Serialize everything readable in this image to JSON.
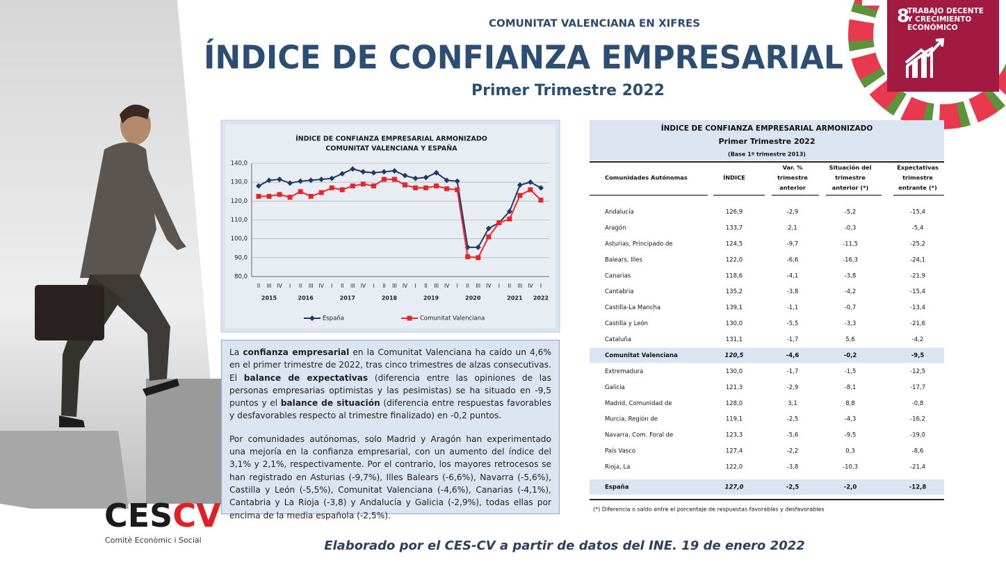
{
  "header": {
    "kicker": "COMUNITAT VALENCIANA EN XIFRES",
    "title": "ÍNDICE DE CONFIANZA EMPRESARIAL",
    "subtitle": "Primer Trimestre 2022"
  },
  "badge": {
    "number": "8",
    "lines": [
      "TRABAJO DECENTE",
      "Y CRECIMIENTO",
      "ECONÓMICO"
    ]
  },
  "chart_data": {
    "type": "line",
    "title": [
      "ÍNDICE DE CONFIANZA EMPRESARIAL ARMONIZADO",
      "COMUNITAT VALENCIANA Y ESPAÑA"
    ],
    "categories": [
      "II",
      "III",
      "IV",
      "I",
      "II",
      "III",
      "IV",
      "I",
      "II",
      "III",
      "IV",
      "I",
      "II",
      "III",
      "IV",
      "I",
      "II",
      "III",
      "IV",
      "I",
      "II",
      "III",
      "IV",
      "I",
      "II",
      "III",
      "IV",
      "I"
    ],
    "years": [
      "2015",
      "2016",
      "2017",
      "2018",
      "2019",
      "2020",
      "2021",
      "2022"
    ],
    "ylim": [
      80,
      140
    ],
    "yticks": [
      {
        "value": 80,
        "label": "80,0"
      },
      {
        "value": 90,
        "label": "90,0"
      },
      {
        "value": 100,
        "label": "100,0"
      },
      {
        "value": 110,
        "label": "110,0"
      },
      {
        "value": 120,
        "label": "120,0"
      },
      {
        "value": 130,
        "label": "130,0"
      },
      {
        "value": 140,
        "label": "140,0"
      }
    ],
    "series": [
      {
        "name": "España",
        "color": "#1f3864",
        "marker": "diamond",
        "values": [
          128,
          131,
          131.5,
          129.5,
          130.5,
          131,
          131.5,
          132,
          134.5,
          137,
          135.5,
          135,
          135.5,
          136,
          133.5,
          132,
          132.5,
          135,
          131,
          130.5,
          95.5,
          95.5,
          105.5,
          108.5,
          114.5,
          128.5,
          130,
          127
        ]
      },
      {
        "name": "Comunitat Valenciana",
        "color": "#e8232a",
        "marker": "square",
        "values": [
          122.5,
          122.5,
          123.5,
          122,
          125,
          122.5,
          124.5,
          127,
          126,
          128,
          129,
          128,
          131.5,
          131.5,
          128.5,
          127,
          127,
          128,
          126.5,
          126,
          90.5,
          90,
          101,
          108.5,
          110.5,
          123,
          126,
          120.5
        ]
      }
    ]
  },
  "text": {
    "paragraphs": [
      [
        {
          "text": "La ",
          "bold": false
        },
        {
          "text": "confianza empresarial",
          "bold": true
        },
        {
          "text": " en la Comunitat Valenciana ha caído un 4,6% en el primer trimestre de 2022, tras cinco trimestres de alzas consecutivas. El ",
          "bold": false
        },
        {
          "text": "balance de expectativas",
          "bold": true
        },
        {
          "text": " (diferencia entre las opiniones de las personas empresarias optimistas y las pesimistas) se ha situado en -9,5 puntos y el ",
          "bold": false
        },
        {
          "text": "balance de situación",
          "bold": true
        },
        {
          "text": " (diferencia entre respuestas favorables y desfavorables respecto al trimestre finalizado) en -0,2 puntos.",
          "bold": false
        }
      ],
      [
        {
          "text": "Por comunidades autónomas, solo Madrid y Aragón han experimentado una mejoría en la confianza empresarial, con un aumento del índice del 3,1% y 2,1%, respectivamente. Por el contrario, los mayores retrocesos se han registrado en Asturias (-9,7%), Illes Balears (-6,6%), Navarra (-5,6%), Castilla y León (-5,5%), Comunitat Valenciana (-4,6%), Canarias (-4,1%), Cantabria y La Rioja (-3,8) y Andalucía y Galicia (-2,9%), todas ellas por encima de la media española (-2,5%).",
          "bold": false
        }
      ]
    ]
  },
  "table": {
    "title": "ÍNDICE DE CONFIANZA EMPRESARIAL ARMONIZADO",
    "subtitle": "Primer Trimestre 2022",
    "base": "(Base 1º trimestre 2013)",
    "headers": [
      [
        "Comunidades Autónomas"
      ],
      [
        "ÍNDICE"
      ],
      [
        "Var. %",
        "trimestre",
        "anterior"
      ],
      [
        "Situación del",
        "trimestre",
        "anterior (*)"
      ],
      [
        "Expectativas",
        "trimestre",
        "entrante (*)"
      ]
    ],
    "rows": [
      [
        "Andalucía",
        "126,9",
        "-2,9",
        "-5,2",
        "-15,4"
      ],
      [
        "Aragón",
        "133,7",
        "2,1",
        "-0,3",
        "-5,4"
      ],
      [
        "Asturias, Principado de",
        "124,5",
        "-9,7",
        "-11,5",
        "-25,2"
      ],
      [
        "Balears, Illes",
        "122,0",
        "-6,6",
        "-16,3",
        "-24,1"
      ],
      [
        "Canarias",
        "118,6",
        "-4,1",
        "-3,8",
        "-21,9"
      ],
      [
        "Cantabria",
        "135,2",
        "-3,8",
        "-4,2",
        "-15,4"
      ],
      [
        "Castilla-La Mancha",
        "139,1",
        "-1,1",
        "-0,7",
        "-13,4"
      ],
      [
        "Castilla y León",
        "130,0",
        "-5,5",
        "-3,3",
        "-21,6"
      ],
      [
        "Cataluña",
        "131,1",
        "-1,7",
        "5,6",
        "-4,2"
      ],
      [
        "Comunitat Valenciana",
        "120,5",
        "-4,6",
        "-0,2",
        "-9,5"
      ],
      [
        "Extremadura",
        "130,0",
        "-1,7",
        "-1,5",
        "-12,5"
      ],
      [
        "Galicia",
        "121,3",
        "-2,9",
        "-8,1",
        "-17,7"
      ],
      [
        "Madrid, Comunidad de",
        "128,0",
        "3,1",
        "8,8",
        "-0,8"
      ],
      [
        "Murcia, Región de",
        "119,1",
        "-2,5",
        "-4,3",
        "-16,2"
      ],
      [
        "Navarra, Com. Foral de",
        "123,3",
        "-5,6",
        "-9,5",
        "-19,0"
      ],
      [
        "País Vasco",
        "127,4",
        "-2,2",
        "0,3",
        "-8,6"
      ],
      [
        "Rioja, La",
        "122,0",
        "-3,8",
        "-10,3",
        "-21,4"
      ]
    ],
    "highlight_rows": [
      9
    ],
    "total": [
      "España",
      "127,0",
      "-2,5",
      "-2,0",
      "-12,8"
    ],
    "footnote": "(*)  Diferencia o saldo entre el porcentaje de respuestas favorables y desfavorables"
  },
  "logo": {
    "part1": "CES",
    "part2": "CV",
    "caption": "Comitè Econòmic i Social"
  },
  "footer": "Elaborado por el CES-CV a partir de datos del INE. 19 de enero 2022"
}
